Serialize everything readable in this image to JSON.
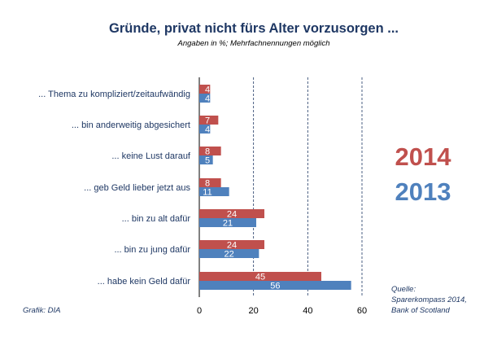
{
  "title": "Gründe, privat nicht fürs Alter vorzusorgen ...",
  "subtitle": "Angaben in %; Mehrfachnennungen möglich",
  "colors": {
    "s2014": "#c0504d",
    "s2013": "#4f81bd",
    "title": "#1f3864",
    "grid": "#1f3864"
  },
  "legend": {
    "year2014": "2014",
    "year2013": "2013"
  },
  "source": {
    "line1": "Quelle:",
    "line2": "Sparerkompass 2014,",
    "line3": "Bank of Scotland"
  },
  "credit": "Grafik: DIA",
  "chart_data": {
    "type": "bar",
    "orientation": "horizontal",
    "categories": [
      "... Thema zu kompliziert/zeitaufwändig",
      "... bin anderweitig abgesichert",
      "... keine Lust darauf",
      "... geb Geld lieber jetzt aus",
      "... bin zu alt dafür",
      "... bin zu jung dafür",
      "... habe kein Geld dafür"
    ],
    "series": [
      {
        "name": "2014",
        "values": [
          4,
          7,
          8,
          8,
          24,
          24,
          45
        ]
      },
      {
        "name": "2013",
        "values": [
          4,
          4,
          5,
          11,
          21,
          22,
          56
        ]
      }
    ],
    "xlim": [
      0,
      60
    ],
    "xticks": [
      0,
      20,
      40,
      60
    ],
    "grid": "vertical dashed at 20, 40, 60",
    "data_labels": true,
    "legend_placement": "right"
  }
}
